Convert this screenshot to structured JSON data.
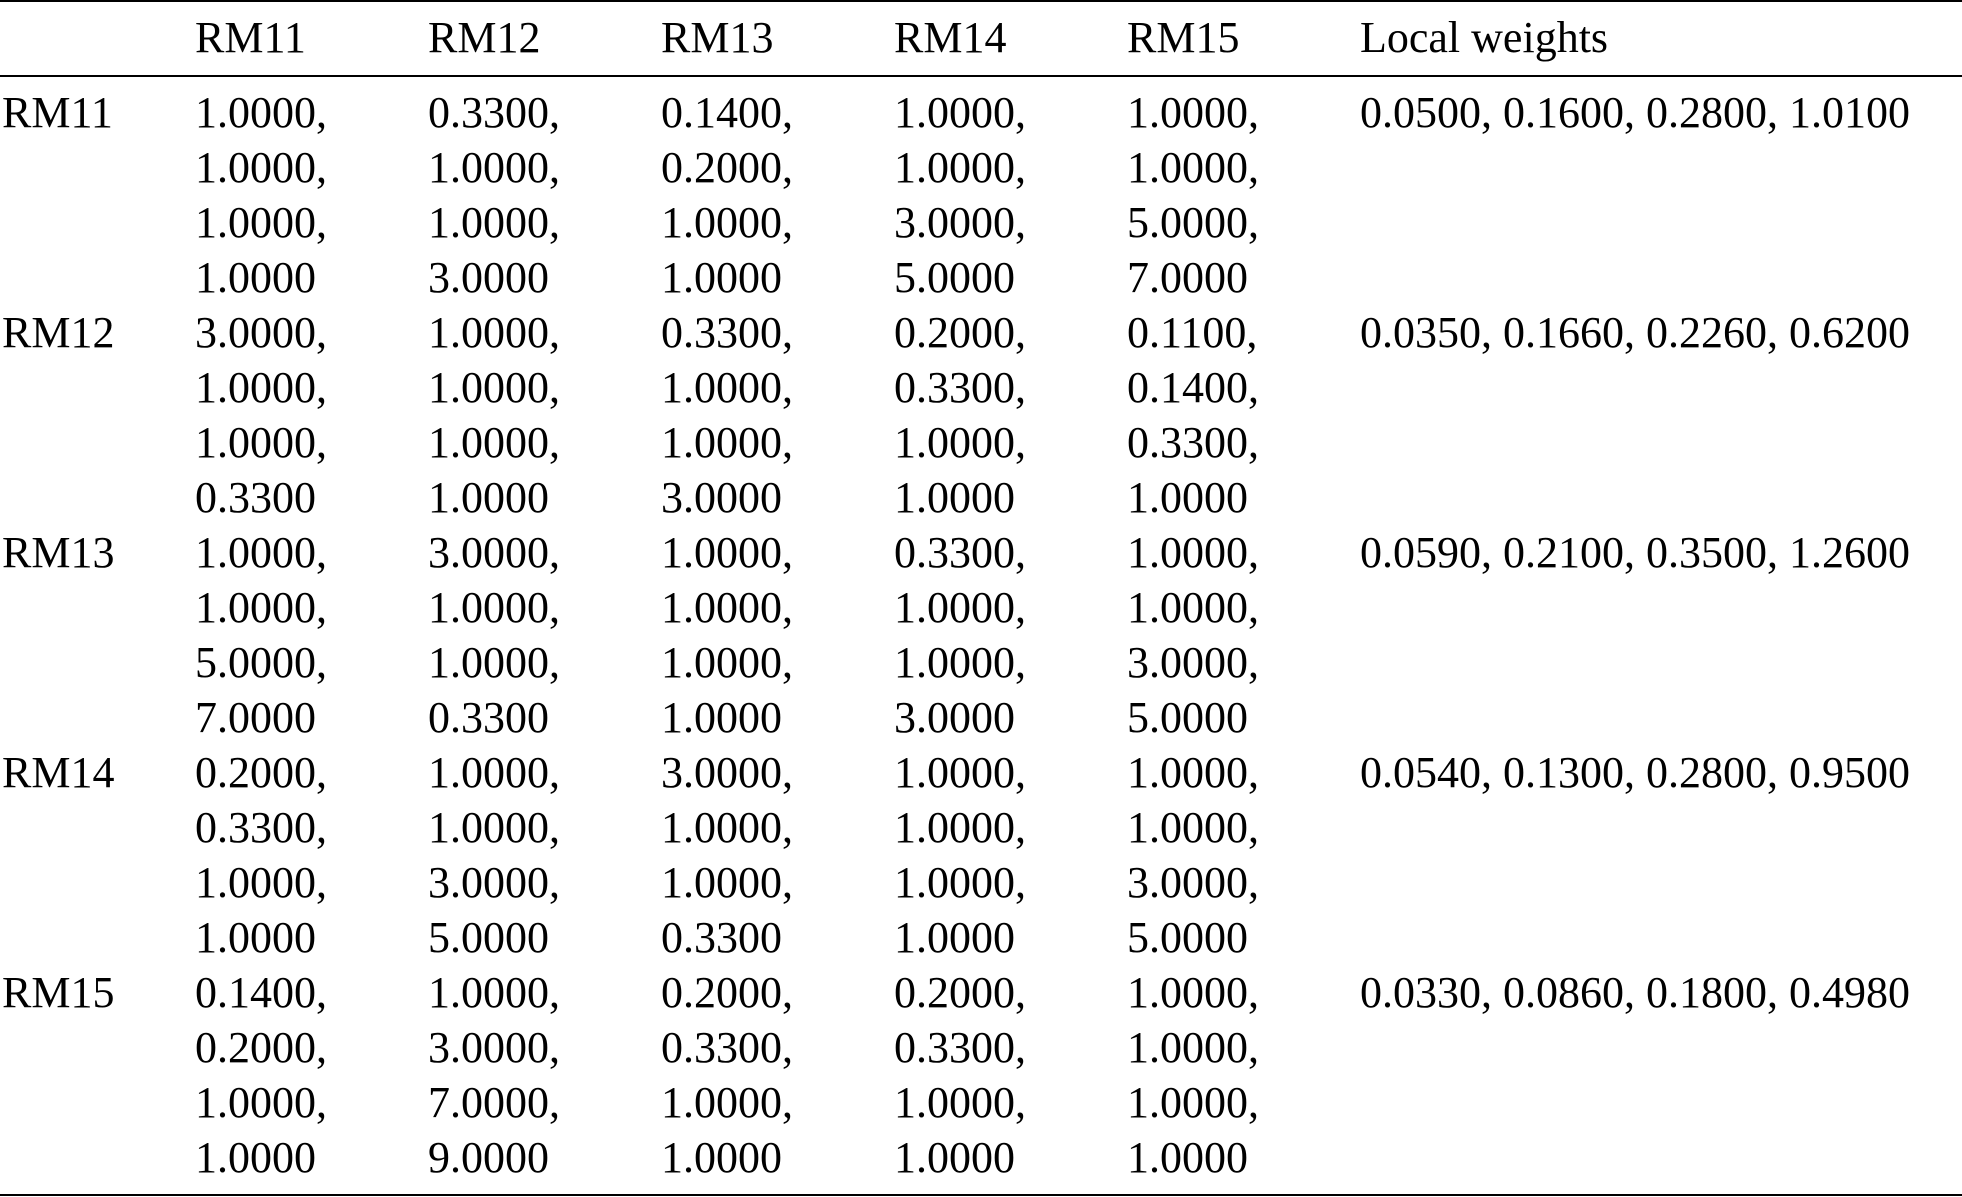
{
  "table": {
    "headers": [
      "",
      "RM11",
      "RM12",
      "RM13",
      "RM14",
      "RM15",
      "Local weights"
    ],
    "rows": [
      {
        "label": "RM11",
        "cells": [
          [
            "1.0000,",
            "1.0000,",
            "1.0000,",
            "1.0000"
          ],
          [
            "0.3300,",
            "1.0000,",
            "1.0000,",
            "3.0000"
          ],
          [
            "0.1400,",
            "0.2000,",
            "1.0000,",
            "1.0000"
          ],
          [
            "1.0000,",
            "1.0000,",
            "3.0000,",
            "5.0000"
          ],
          [
            "1.0000,",
            "1.0000,",
            "5.0000,",
            "7.0000"
          ]
        ],
        "weights": "0.0500, 0.1600, 0.2800, 1.0100"
      },
      {
        "label": "RM12",
        "cells": [
          [
            "3.0000,",
            "1.0000,",
            "1.0000,",
            "0.3300"
          ],
          [
            "1.0000,",
            "1.0000,",
            "1.0000,",
            "1.0000"
          ],
          [
            "0.3300,",
            "1.0000,",
            "1.0000,",
            "3.0000"
          ],
          [
            "0.2000,",
            "0.3300,",
            "1.0000,",
            "1.0000"
          ],
          [
            "0.1100,",
            "0.1400,",
            "0.3300,",
            "1.0000"
          ]
        ],
        "weights": "0.0350, 0.1660, 0.2260, 0.6200"
      },
      {
        "label": "RM13",
        "cells": [
          [
            "1.0000,",
            "1.0000,",
            "5.0000,",
            "7.0000"
          ],
          [
            "3.0000,",
            "1.0000,",
            "1.0000,",
            "0.3300"
          ],
          [
            "1.0000,",
            "1.0000,",
            "1.0000,",
            "1.0000"
          ],
          [
            "0.3300,",
            "1.0000,",
            "1.0000,",
            "3.0000"
          ],
          [
            "1.0000,",
            "1.0000,",
            "3.0000,",
            "5.0000"
          ]
        ],
        "weights": "0.0590, 0.2100, 0.3500, 1.2600"
      },
      {
        "label": "RM14",
        "cells": [
          [
            "0.2000,",
            "0.3300,",
            "1.0000,",
            "1.0000"
          ],
          [
            "1.0000,",
            "1.0000,",
            "3.0000,",
            "5.0000"
          ],
          [
            "3.0000,",
            "1.0000,",
            "1.0000,",
            "0.3300"
          ],
          [
            "1.0000,",
            "1.0000,",
            "1.0000,",
            "1.0000"
          ],
          [
            "1.0000,",
            "1.0000,",
            "3.0000,",
            "5.0000"
          ]
        ],
        "weights": "0.0540, 0.1300, 0.2800, 0.9500"
      },
      {
        "label": "RM15",
        "cells": [
          [
            "0.1400,",
            "0.2000,",
            "1.0000,",
            "1.0000"
          ],
          [
            "1.0000,",
            "3.0000,",
            "7.0000,",
            "9.0000"
          ],
          [
            "0.2000,",
            "0.3300,",
            "1.0000,",
            "1.0000"
          ],
          [
            "0.2000,",
            "0.3300,",
            "1.0000,",
            "1.0000"
          ],
          [
            "1.0000,",
            "1.0000,",
            "1.0000,",
            "1.0000"
          ]
        ],
        "weights": "0.0330, 0.0860, 0.1800, 0.4980"
      }
    ]
  }
}
